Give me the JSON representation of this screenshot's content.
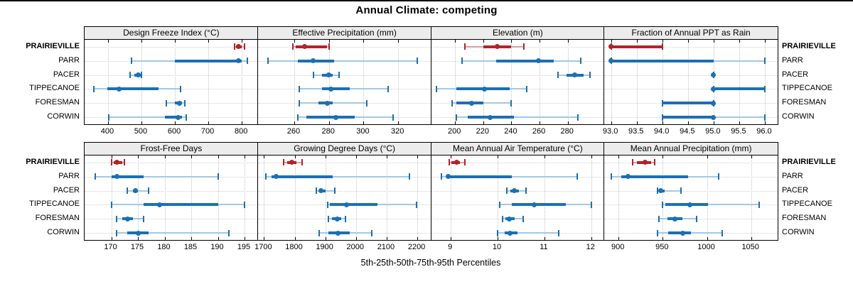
{
  "chart_data": {
    "type": "scatter",
    "subtype": "percentile-dotplot-trellis",
    "title": "Annual Climate: competing",
    "caption": "5th-25th-50th-75th-95th Percentiles",
    "percentile_labels": [
      "5th",
      "25th",
      "50th",
      "75th",
      "95th"
    ],
    "legend_position": "none",
    "grid": "dotted",
    "sites": [
      "PRAIRIEVILLE",
      "PARR",
      "PACER",
      "TIPPECANOE",
      "FORESMAN",
      "CORWIN"
    ],
    "highlight_site": "PRAIRIEVILLE",
    "colors": {
      "highlight": "#b2232a",
      "highlight_light": "#dda0a3",
      "normal": "#1c6fb4",
      "normal_light": "#a3c8e4",
      "header_bg": "#ececec",
      "grid": "#c4c4c4"
    },
    "panels": [
      {
        "title": "Design Freeze Index (°C)",
        "axis_min": 330,
        "axis_max": 848,
        "ticks": [
          400,
          500,
          600,
          700,
          800
        ],
        "tick_labels": [
          "400",
          "500",
          "600",
          "700",
          "800"
        ],
        "series": {
          "PRAIRIEVILLE": [
            778,
            782,
            791,
            800,
            809
          ],
          "PARR": [
            470,
            600,
            790,
            800,
            817
          ],
          "PACER": [
            466,
            478,
            490,
            497,
            501
          ],
          "TIPPECANOE": [
            357,
            398,
            434,
            550,
            616
          ],
          "FORESMAN": [
            574,
            600,
            613,
            622,
            630
          ],
          "CORWIN": [
            402,
            570,
            610,
            622,
            634
          ]
        }
      },
      {
        "title": "Effective Precipitation (mm)",
        "axis_min": 239,
        "axis_max": 339,
        "ticks": [
          260,
          280,
          300,
          320
        ],
        "tick_labels": [
          "260",
          "280",
          "300",
          "320"
        ],
        "series": {
          "PRAIRIEVILLE": [
            259,
            261,
            266,
            279,
            280
          ],
          "PARR": [
            245,
            262,
            271,
            283,
            331
          ],
          "PACER": [
            271,
            276,
            280,
            282,
            286
          ],
          "TIPPECANOE": [
            263,
            276,
            281,
            292,
            314
          ],
          "FORESMAN": [
            263,
            274,
            279,
            282,
            302
          ],
          "CORWIN": [
            262,
            267,
            284,
            295,
            317
          ]
        }
      },
      {
        "title": "Elevation (m)",
        "axis_min": 183,
        "axis_max": 306,
        "ticks": [
          200,
          220,
          240,
          260,
          280
        ],
        "tick_labels": [
          "200",
          "220",
          "240",
          "260",
          "280"
        ],
        "series": {
          "PRAIRIEVILLE": [
            207,
            220,
            230,
            240,
            249
          ],
          "PARR": [
            205,
            229,
            259,
            270,
            289
          ],
          "PACER": [
            273,
            279,
            285,
            291,
            296
          ],
          "TIPPECANOE": [
            187,
            201,
            221,
            239,
            251
          ],
          "FORESMAN": [
            198,
            201,
            212,
            220,
            240
          ],
          "CORWIN": [
            201,
            209,
            225,
            242,
            287
          ]
        }
      },
      {
        "title": "Fraction of Annual PPT as Rain",
        "axis_min": 92.87,
        "axis_max": 96.25,
        "ticks": [
          93.0,
          93.5,
          94.0,
          94.5,
          95.0,
          95.5,
          96.0
        ],
        "tick_labels": [
          "93.0",
          "93.5",
          "94.0",
          "94.5",
          "95.0",
          "95.5",
          "96.0"
        ],
        "series": {
          "PRAIRIEVILLE": [
            93,
            93,
            93,
            94,
            94
          ],
          "PARR": [
            93,
            93,
            93,
            95,
            96
          ],
          "PACER": [
            95,
            95,
            95,
            95,
            95
          ],
          "TIPPECANOE": [
            95,
            95,
            95,
            96,
            96
          ],
          "FORESMAN": [
            94,
            94,
            95,
            95,
            95
          ],
          "CORWIN": [
            94,
            94,
            95,
            95,
            96
          ]
        }
      },
      {
        "title": "Frost-Free Days",
        "axis_min": 165,
        "axis_max": 197.5,
        "ticks": [
          170,
          175,
          180,
          185,
          190,
          195
        ],
        "tick_labels": [
          "170",
          "175",
          "180",
          "185",
          "190",
          "195"
        ],
        "series": {
          "PRAIRIEVILLE": [
            170,
            170.5,
            171,
            172,
            172.5
          ],
          "PARR": [
            167,
            170,
            171,
            176,
            190
          ],
          "PACER": [
            173,
            174,
            174.5,
            175,
            177
          ],
          "TIPPECANOE": [
            170,
            176,
            179,
            190,
            195
          ],
          "FORESMAN": [
            171,
            172,
            173,
            174,
            176
          ],
          "CORWIN": [
            171,
            173,
            175,
            177,
            192
          ]
        }
      },
      {
        "title": "Growing Degree Days (°C)",
        "axis_min": 1680,
        "axis_max": 2245,
        "ticks": [
          1700,
          1800,
          1900,
          2000,
          2100,
          2200
        ],
        "tick_labels": [
          "1700",
          "1800",
          "1900",
          "2000",
          "2100",
          "2200"
        ],
        "series": {
          "PRAIRIEVILLE": [
            1765,
            1775,
            1790,
            1805,
            1825
          ],
          "PARR": [
            1705,
            1725,
            1740,
            1925,
            2175
          ],
          "PACER": [
            1870,
            1880,
            1885,
            1900,
            1930
          ],
          "TIPPECANOE": [
            1907,
            1915,
            1970,
            2070,
            2198
          ],
          "FORESMAN": [
            1909,
            1922,
            1939,
            1952,
            1965
          ],
          "CORWIN": [
            1880,
            1909,
            1942,
            1979,
            2051
          ]
        }
      },
      {
        "title": "Mean Annual Air Temperature (°C)",
        "axis_min": 8.58,
        "axis_max": 12.28,
        "ticks": [
          9,
          10,
          11,
          12
        ],
        "tick_labels": [
          "9",
          "10",
          "11",
          "12"
        ],
        "series": {
          "PRAIRIEVILLE": [
            8.97,
            9.02,
            9.13,
            9.2,
            9.3
          ],
          "PARR": [
            8.8,
            8.9,
            8.95,
            10.3,
            11.7
          ],
          "PACER": [
            10.2,
            10.27,
            10.35,
            10.45,
            10.6
          ],
          "TIPPECANOE": [
            10.05,
            10.3,
            10.78,
            11.45,
            12.0
          ],
          "FORESMAN": [
            10.1,
            10.17,
            10.25,
            10.37,
            10.55
          ],
          "CORWIN": [
            10.0,
            10.15,
            10.27,
            10.42,
            11.3
          ]
        }
      },
      {
        "title": "Mean Annual Precipitation (mm)",
        "axis_min": 884,
        "axis_max": 1080,
        "ticks": [
          900,
          950,
          1000,
          1050
        ],
        "tick_labels": [
          "900",
          "950",
          "1000",
          "1050"
        ],
        "series": {
          "PRAIRIEVILLE": [
            916,
            921,
            930,
            937,
            941
          ],
          "PARR": [
            892,
            903,
            911,
            979,
            1013
          ],
          "PACER": [
            944,
            946,
            948,
            952,
            971
          ],
          "TIPPECANOE": [
            950,
            953,
            981,
            1001,
            1059
          ],
          "FORESMAN": [
            946,
            955,
            964,
            972,
            988
          ],
          "CORWIN": [
            944,
            956,
            973,
            982,
            1017
          ]
        }
      }
    ]
  }
}
